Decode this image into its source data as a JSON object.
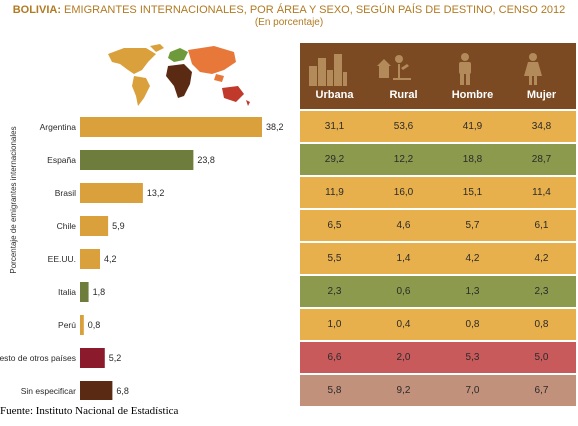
{
  "title_bold": "BOLIVIA:",
  "title_rest": " EMIGRANTES INTERNACIONALES, POR ÁREA Y SEXO, SEGÚN PAÍS DE DESTINO, CENSO 2012",
  "subtitle": "(En porcentaje)",
  "ylabel": "Porcentaje de emigrantes internacionales",
  "source": "Fuente: Instituto Nacional de Estadística",
  "icons": [
    "city-icon",
    "farm-icon",
    "man-icon",
    "woman-icon"
  ],
  "colors": {
    "header": "#7b4a23",
    "orange": "#d9a03c",
    "green": "#6f7d3c",
    "red": "#8b1a2c",
    "brown": "#5a2a12",
    "row_orange": "#e7b04c",
    "row_green": "#8c9a4d",
    "row_red": "#c95a5c",
    "row_taupe": "#c2917c"
  },
  "chart_data": {
    "type": "bar",
    "orientation": "horizontal",
    "categories": [
      "Argentina",
      "España",
      "Brasil",
      "Chile",
      "EE.UU.",
      "Italia",
      "Perú",
      "Resto de otros países",
      "Sin especificar"
    ],
    "values": [
      38.2,
      23.8,
      13.2,
      5.9,
      4.2,
      1.8,
      0.8,
      5.2,
      6.8
    ],
    "value_labels": [
      "38,2",
      "23,8",
      "13,2",
      "5,9",
      "4,2",
      "1,8",
      "0,8",
      "5,2",
      "6,8"
    ],
    "bar_colors": [
      "#d9a03c",
      "#6f7d3c",
      "#d9a03c",
      "#d9a03c",
      "#d9a03c",
      "#6f7d3c",
      "#d9a03c",
      "#8b1a2c",
      "#5a2a12"
    ],
    "ylabel": "Porcentaje de emigrantes internacionales",
    "xlim": [
      0,
      38.2
    ],
    "grid": false
  },
  "table": {
    "columns": [
      "Urbana",
      "Rural",
      "Hombre",
      "Mujer"
    ],
    "rows": [
      {
        "cells": [
          "31,1",
          "53,6",
          "41,9",
          "34,8"
        ],
        "color": "#e7b04c"
      },
      {
        "cells": [
          "29,2",
          "12,2",
          "18,8",
          "28,7"
        ],
        "color": "#8c9a4d"
      },
      {
        "cells": [
          "11,9",
          "16,0",
          "15,1",
          "11,4"
        ],
        "color": "#e7b04c"
      },
      {
        "cells": [
          "6,5",
          "4,6",
          "5,7",
          "6,1"
        ],
        "color": "#e7b04c"
      },
      {
        "cells": [
          "5,5",
          "1,4",
          "4,2",
          "4,2"
        ],
        "color": "#e7b04c"
      },
      {
        "cells": [
          "2,3",
          "0,6",
          "1,3",
          "2,3"
        ],
        "color": "#8c9a4d"
      },
      {
        "cells": [
          "1,0",
          "0,4",
          "0,8",
          "0,8"
        ],
        "color": "#e7b04c"
      },
      {
        "cells": [
          "6,6",
          "2,0",
          "5,3",
          "5,0"
        ],
        "color": "#c95a5c"
      },
      {
        "cells": [
          "5,8",
          "9,2",
          "7,0",
          "6,7"
        ],
        "color": "#c2917c"
      }
    ]
  }
}
